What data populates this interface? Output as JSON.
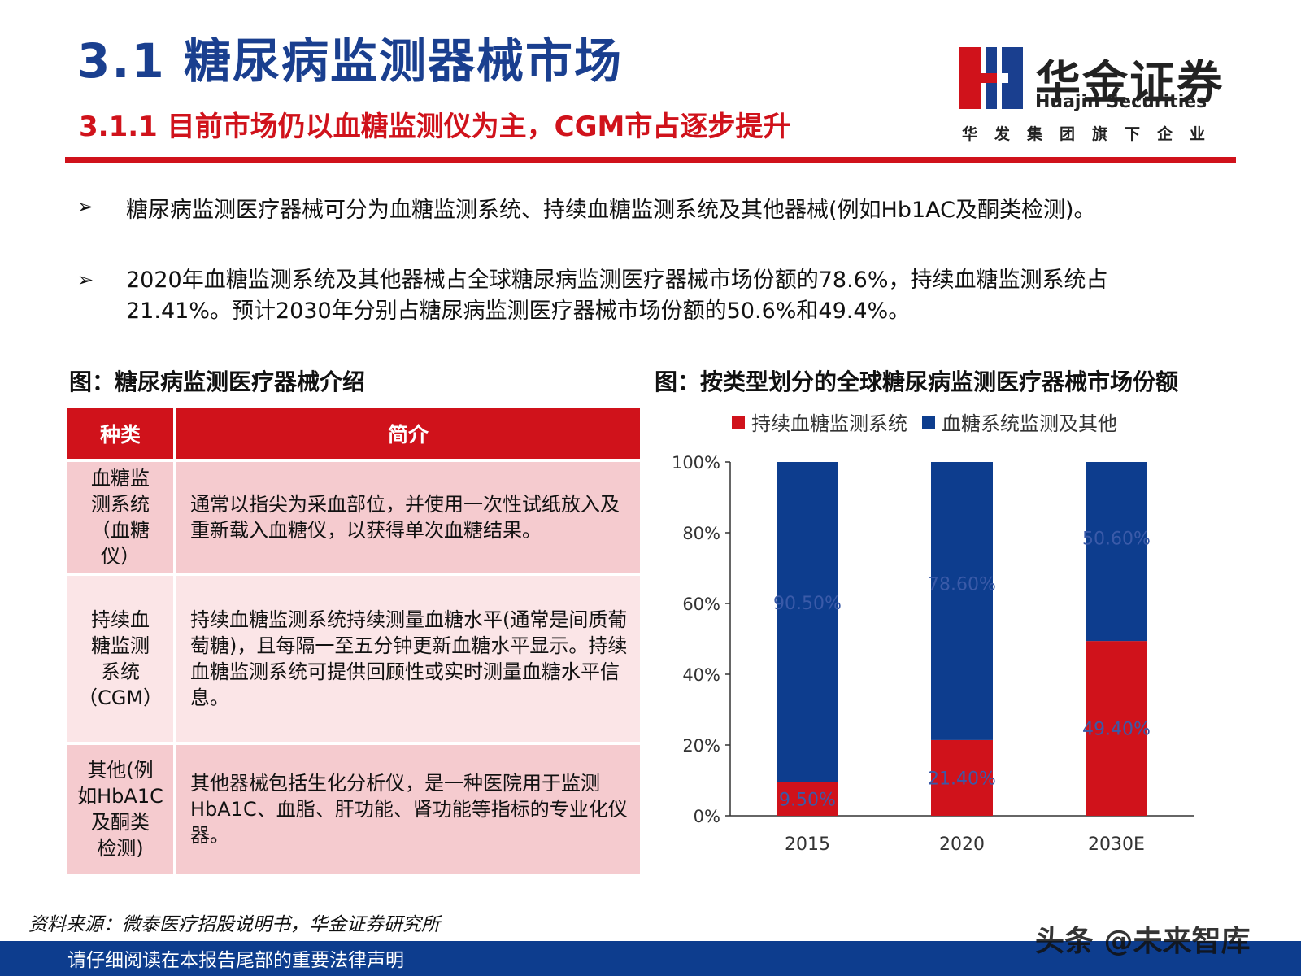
{
  "header": {
    "title": "3.1 糖尿病监测器械市场",
    "subtitle": "3.1.1 目前市场仍以血糖监测仪为主，CGM市占逐步提升"
  },
  "logo": {
    "name_cn": "华金证券",
    "name_en": "Huajin Securities",
    "slogan": "华发集团旗下企业",
    "colors": {
      "red": "#d0121b",
      "blue": "#1a3f8f"
    }
  },
  "bullets": [
    {
      "mark": "➢",
      "text": "糖尿病监测医疗器械可分为血糖监测系统、持续血糖监测系统及其他器械(例如Hb1AC及酮类检测)。"
    },
    {
      "mark": "➢",
      "text": "2020年血糖监测系统及其他器械占全球糖尿病监测医疗器械市场份额的78.6%，持续血糖监测系统占21.41%。预计2030年分别占糖尿病监测医疗器械市场份额的50.6%和49.4%。"
    }
  ],
  "figure1": {
    "title": "图：糖尿病监测医疗器械介绍",
    "headers": [
      "种类",
      "简介"
    ],
    "rows": [
      {
        "type": "血糖监测系统（血糖仪）",
        "type_lines": [
          "血糖监",
          "测系统",
          "（血糖",
          "仪）"
        ],
        "desc": "通常以指尖为采血部位，并使用一次性试纸放入及重新载入血糖仪，以获得单次血糖结果。"
      },
      {
        "type": "持续血糖监测系统（CGM）",
        "type_lines": [
          "持续血",
          "糖监测",
          "系统",
          "（CGM）"
        ],
        "desc": "持续血糖监测系统持续测量血糖水平(通常是间质葡萄糖)，且每隔一至五分钟更新血糖水平显示。持续血糖监测系统可提供回顾性或实时测量血糖水平信息。"
      },
      {
        "type": "其他(例如HbA1C及酮类检测)",
        "type_lines": [
          "其他(例",
          "如HbA1C",
          "及酮类",
          "检测)"
        ],
        "desc": "其他器械包括生化分析仪，是一种医院用于监测HbA1C、血脂、肝功能、肾功能等指标的专业化仪器。"
      }
    ]
  },
  "figure2": {
    "title": "图：按类型划分的全球糖尿病监测医疗器械市场份额"
  },
  "chart_data": {
    "type": "bar",
    "stacked": true,
    "categories": [
      "2015",
      "2020",
      "2030E"
    ],
    "series": [
      {
        "name": "持续血糖监测系统",
        "color": "#d0121b",
        "values": [
          9.5,
          21.4,
          49.4
        ],
        "labels": [
          "9.50%",
          "21.40%",
          "49.40%"
        ]
      },
      {
        "name": "血糖系统监测及其他",
        "color": "#0d3d8e",
        "values": [
          90.5,
          78.6,
          50.6
        ],
        "labels": [
          "90.50%",
          "78.60%",
          "50.60%"
        ]
      }
    ],
    "ylim": [
      0,
      100
    ],
    "yticks": [
      "0%",
      "20%",
      "40%",
      "60%",
      "80%",
      "100%"
    ],
    "legend": "top",
    "grid": false
  },
  "footer": {
    "source": "资料来源：微泰医疗招股说明书，华金证券研究所",
    "disclaimer": "请仔细阅读在本报告尾部的重要法律声明",
    "watermark": "头条 @未来智库"
  }
}
